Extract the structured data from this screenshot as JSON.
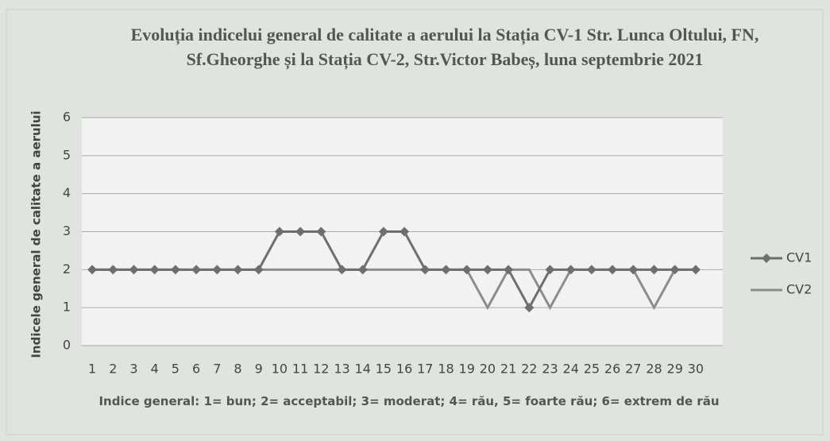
{
  "chart_data": {
    "type": "line",
    "title": "Evoluția indicelui general de calitate a aerului la Stația CV-1 Str. Lunca Oltului, FN, Sf.Gheorghe și la Stația CV-2, Str.Victor Babeș, luna septembrie 2021",
    "x_label": "Indice general: 1= bun; 2= acceptabil; 3= moderat; 4= rău, 5= foarte rău; 6= extrem de rău",
    "y_label": "Indicele general de calitate a aerului",
    "categories": [
      "1",
      "2",
      "3",
      "4",
      "5",
      "6",
      "7",
      "8",
      "9",
      "10",
      "11",
      "12",
      "13",
      "14",
      "15",
      "16",
      "17",
      "18",
      "19",
      "20",
      "21",
      "22",
      "23",
      "24",
      "25",
      "26",
      "27",
      "28",
      "29",
      "30"
    ],
    "series": [
      {
        "name": "CV1",
        "color": "#6e6e6e",
        "marker": "diamond",
        "values": [
          2,
          2,
          2,
          2,
          2,
          2,
          2,
          2,
          2,
          3,
          3,
          3,
          2,
          2,
          3,
          3,
          2,
          2,
          2,
          2,
          2,
          1,
          2,
          2,
          2,
          2,
          2,
          2,
          2,
          2
        ]
      },
      {
        "name": "CV2",
        "color": "#8c8c8c",
        "values": [
          2,
          2,
          2,
          2,
          2,
          2,
          2,
          2,
          2,
          2,
          2,
          2,
          2,
          2,
          2,
          2,
          2,
          2,
          2,
          1,
          2,
          2,
          1,
          2,
          2,
          2,
          2,
          1,
          2,
          2
        ]
      }
    ],
    "ylim": [
      0,
      6
    ],
    "yticks": [
      0,
      1,
      2,
      3,
      4,
      5,
      6
    ],
    "grid": true,
    "legend": "right"
  }
}
